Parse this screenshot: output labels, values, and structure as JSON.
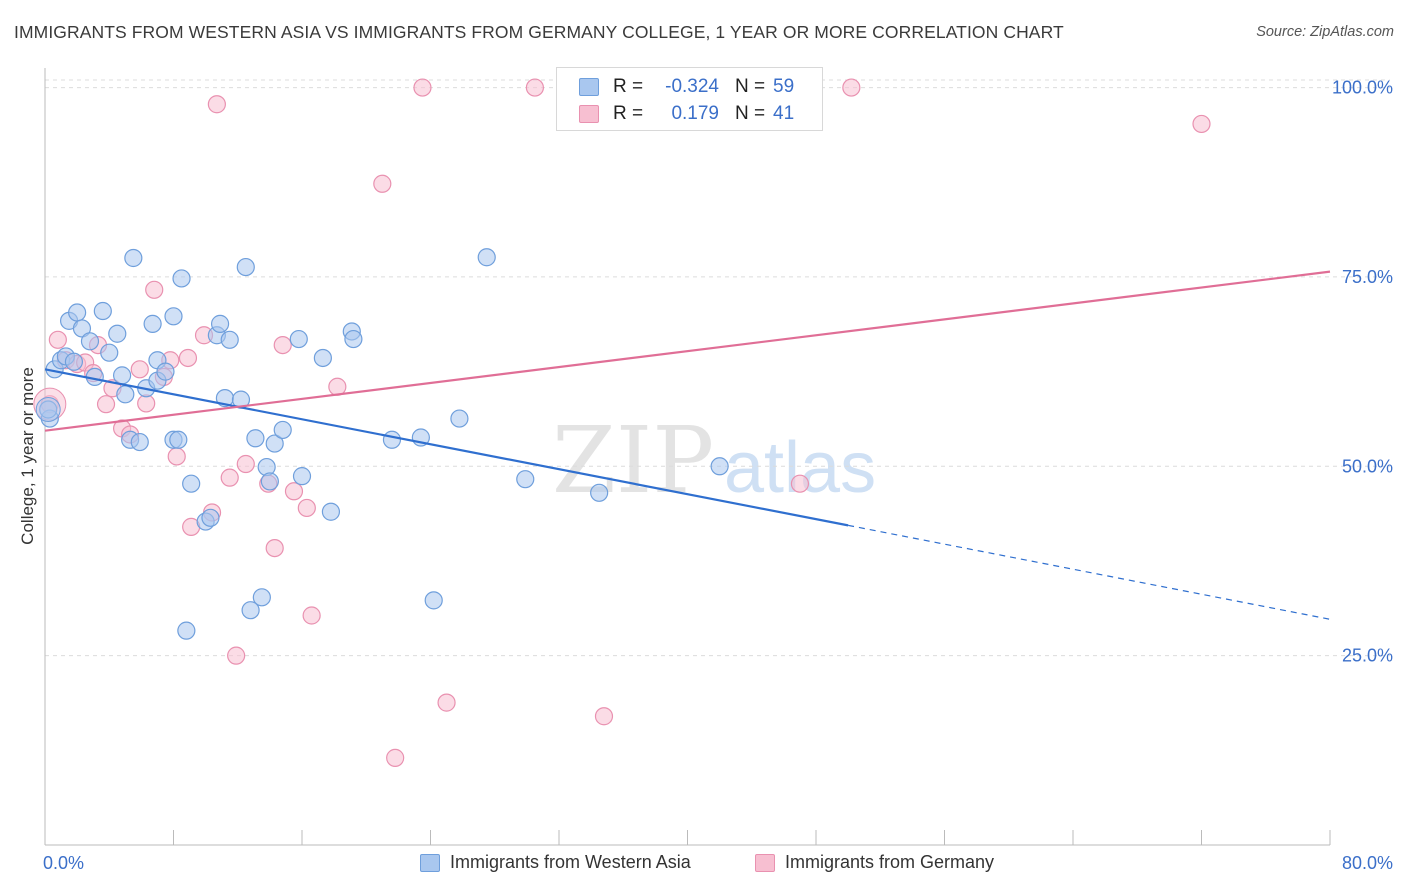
{
  "header": {
    "title": "IMMIGRANTS FROM WESTERN ASIA VS IMMIGRANTS FROM GERMANY COLLEGE, 1 YEAR OR MORE CORRELATION CHART",
    "source": "Source: ZipAtlas.com"
  },
  "watermark": {
    "zip": "ZIP",
    "atlas": "atlas"
  },
  "legend": {
    "rows": [
      {
        "r_label": "R =",
        "r_value": "-0.324",
        "n_label": "N =",
        "n_value": "59"
      },
      {
        "r_label": "R =",
        "r_value": "0.179",
        "n_label": "N =",
        "n_value": "41"
      }
    ]
  },
  "colors": {
    "blue_fill": "#a9c7ef",
    "blue_stroke": "#6f9fdc",
    "blue_line": "#2f6fcf",
    "pink_fill": "#f7bfd1",
    "pink_stroke": "#e991b0",
    "pink_line": "#e06e96",
    "tick_label": "#3b6fc9",
    "grid": "#dcdcdc"
  },
  "chart_data": {
    "type": "scatter",
    "title": "IMMIGRANTS FROM WESTERN ASIA VS IMMIGRANTS FROM GERMANY COLLEGE, 1 YEAR OR MORE CORRELATION CHART",
    "xlabel": "",
    "ylabel": "College, 1 year or more",
    "xlim": [
      0,
      80
    ],
    "ylim": [
      0,
      101
    ],
    "x_tick_labels": [
      "0.0%",
      "80.0%"
    ],
    "y_ticks": [
      25,
      50,
      75,
      100
    ],
    "y_tick_labels": [
      "25.0%",
      "50.0%",
      "75.0%",
      "100.0%"
    ],
    "grid": true,
    "legend_position": "top-center",
    "series": [
      {
        "name": "Immigrants from Western Asia",
        "r": -0.324,
        "n": 59,
        "trend": {
          "x0": 0,
          "y0": 62.8,
          "x1": 50,
          "y1": 42.2,
          "dashed_to_x": 80,
          "dashed_to_y": 29.8
        },
        "points": [
          [
            0.3,
            56.3
          ],
          [
            0.6,
            62.8
          ],
          [
            1.0,
            64.0
          ],
          [
            1.3,
            64.5
          ],
          [
            1.5,
            69.2
          ],
          [
            1.8,
            63.8
          ],
          [
            2.0,
            70.3
          ],
          [
            2.3,
            68.2
          ],
          [
            2.8,
            66.5
          ],
          [
            3.1,
            61.8
          ],
          [
            3.6,
            70.5
          ],
          [
            4.0,
            65.0
          ],
          [
            4.5,
            67.5
          ],
          [
            4.8,
            62.0
          ],
          [
            5.0,
            59.5
          ],
          [
            5.3,
            53.5
          ],
          [
            5.5,
            77.5
          ],
          [
            5.9,
            53.2
          ],
          [
            6.3,
            60.3
          ],
          [
            6.7,
            68.8
          ],
          [
            7.0,
            61.3
          ],
          [
            7.0,
            64.0
          ],
          [
            7.5,
            62.5
          ],
          [
            8.0,
            53.5
          ],
          [
            8.0,
            69.8
          ],
          [
            8.3,
            53.5
          ],
          [
            8.5,
            74.8
          ],
          [
            8.8,
            28.3
          ],
          [
            9.1,
            47.7
          ],
          [
            10.0,
            42.7
          ],
          [
            10.3,
            43.2
          ],
          [
            10.7,
            67.3
          ],
          [
            10.9,
            68.8
          ],
          [
            11.2,
            59.0
          ],
          [
            11.5,
            66.7
          ],
          [
            12.2,
            58.8
          ],
          [
            12.5,
            76.3
          ],
          [
            12.8,
            31.0
          ],
          [
            13.1,
            53.7
          ],
          [
            13.5,
            32.7
          ],
          [
            13.8,
            49.9
          ],
          [
            14.0,
            48.0
          ],
          [
            14.3,
            53.0
          ],
          [
            14.8,
            54.8
          ],
          [
            15.8,
            66.8
          ],
          [
            16.0,
            48.7
          ],
          [
            17.3,
            64.3
          ],
          [
            17.8,
            44.0
          ],
          [
            19.1,
            67.8
          ],
          [
            19.2,
            66.8
          ],
          [
            21.6,
            53.5
          ],
          [
            23.4,
            53.8
          ],
          [
            24.2,
            32.3
          ],
          [
            25.8,
            56.3
          ],
          [
            27.5,
            77.6
          ],
          [
            29.9,
            48.3
          ],
          [
            34.5,
            46.5
          ],
          [
            42.0,
            50.0
          ],
          [
            0.2,
            57.5
          ]
        ]
      },
      {
        "name": "Immigrants from Germany",
        "r": 0.179,
        "n": 41,
        "trend": {
          "x0": 0,
          "y0": 54.7,
          "x1": 80,
          "y1": 75.7
        },
        "points": [
          [
            0.3,
            58.2
          ],
          [
            0.8,
            66.7
          ],
          [
            1.3,
            64.0
          ],
          [
            2.0,
            63.5
          ],
          [
            2.5,
            63.7
          ],
          [
            3.0,
            62.3
          ],
          [
            3.3,
            66.0
          ],
          [
            3.8,
            58.2
          ],
          [
            4.2,
            60.3
          ],
          [
            4.8,
            55.0
          ],
          [
            5.3,
            54.2
          ],
          [
            5.9,
            62.8
          ],
          [
            6.3,
            58.3
          ],
          [
            6.8,
            73.3
          ],
          [
            7.4,
            61.8
          ],
          [
            7.8,
            64.0
          ],
          [
            8.2,
            51.3
          ],
          [
            8.9,
            64.3
          ],
          [
            9.1,
            42.0
          ],
          [
            9.9,
            67.3
          ],
          [
            10.4,
            43.9
          ],
          [
            10.7,
            97.8
          ],
          [
            11.5,
            48.5
          ],
          [
            11.9,
            25.0
          ],
          [
            12.5,
            50.3
          ],
          [
            13.9,
            47.7
          ],
          [
            14.3,
            39.2
          ],
          [
            14.8,
            66.0
          ],
          [
            15.5,
            46.7
          ],
          [
            16.3,
            44.5
          ],
          [
            16.6,
            30.3
          ],
          [
            18.2,
            60.5
          ],
          [
            21.0,
            87.3
          ],
          [
            21.8,
            11.5
          ],
          [
            23.5,
            100.0
          ],
          [
            25.0,
            18.8
          ],
          [
            30.5,
            100.0
          ],
          [
            34.8,
            17.0
          ],
          [
            47.0,
            47.7
          ],
          [
            50.2,
            100.0
          ],
          [
            72.0,
            95.2
          ]
        ]
      }
    ]
  }
}
